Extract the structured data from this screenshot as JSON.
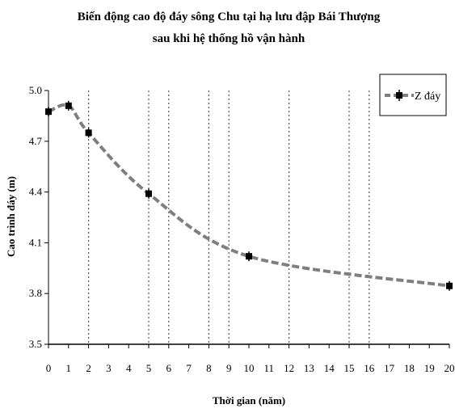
{
  "chart_data": {
    "type": "line",
    "title": "Biến động cao độ đáy sông Chu tại hạ lưu đập Bái Thượng",
    "subtitle": "sau khi hệ thống hồ vận hành",
    "xlabel": "Thời gian (năm)",
    "ylabel": "Cao trình đáy (m)",
    "xlim": [
      0,
      20
    ],
    "ylim": [
      3.5,
      5.0
    ],
    "x_ticks": [
      0,
      1,
      2,
      3,
      4,
      5,
      6,
      7,
      8,
      9,
      10,
      11,
      12,
      13,
      14,
      15,
      16,
      17,
      18,
      19,
      20
    ],
    "y_ticks": [
      3.5,
      3.8,
      4.1,
      4.4,
      4.7,
      5.0
    ],
    "y_tick_labels": [
      "3.5",
      "3.8",
      "4.1",
      "4.4",
      "4.7",
      "5.0"
    ],
    "dotted_gridlines_x": [
      2,
      5,
      6,
      8,
      9,
      12,
      15,
      16
    ],
    "legend_position": "top-right",
    "series": [
      {
        "name": "Z đáy",
        "color": "#7f7f7f",
        "style": "dashed",
        "x": [
          0,
          1,
          2,
          5,
          10,
          20
        ],
        "y": [
          4.875,
          4.91,
          4.75,
          4.39,
          4.02,
          3.845
        ]
      }
    ]
  }
}
